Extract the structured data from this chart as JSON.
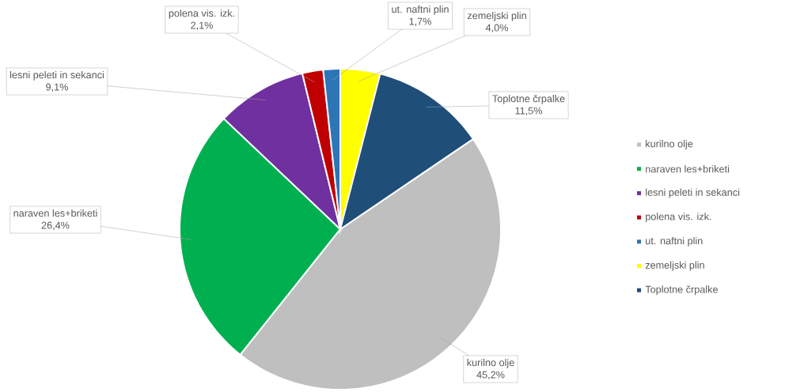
{
  "chart_data": {
    "type": "pie",
    "categories": [
      "kurilno olje",
      "naraven les+briketi",
      "lesni peleti in sekanci",
      "polena vis. izk.",
      "ut. naftni plin",
      "zemeljski plin",
      "Toplotne črpalke"
    ],
    "values": [
      45.2,
      26.4,
      9.1,
      2.1,
      1.7,
      4.0,
      11.5
    ],
    "value_labels": [
      "45,2%",
      "26,4%",
      "9,1%",
      "2,1%",
      "1,7%",
      "4,0%",
      "11,5%"
    ],
    "colors": [
      "#bfbfbf",
      "#00b050",
      "#7030a0",
      "#c00000",
      "#2e75b6",
      "#ffff00",
      "#1f4e79"
    ],
    "legend": "right"
  }
}
